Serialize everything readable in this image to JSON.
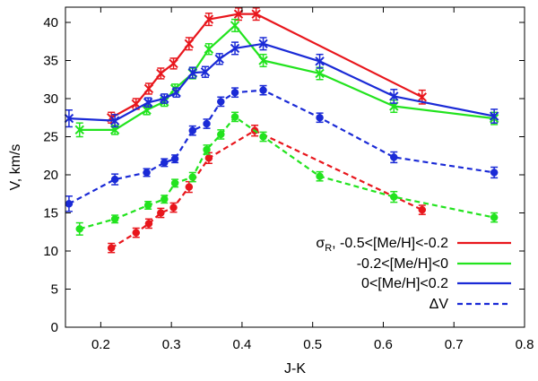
{
  "chart_data": {
    "type": "line",
    "title": "",
    "xlabel": "J-K",
    "ylabel": "V, km/s",
    "xlim": [
      0.15,
      0.8
    ],
    "ylim": [
      0,
      42
    ],
    "xticks": [
      "0.2",
      "0.3",
      "0.4",
      "0.5",
      "0.6",
      "0.7",
      "0.8"
    ],
    "yticks": [
      "0",
      "5",
      "10",
      "15",
      "20",
      "25",
      "30",
      "35",
      "40"
    ],
    "legend_position": "bottom-right",
    "legend": [
      {
        "label": "σ_R, -0.5<[Me/H]<-0.2",
        "prefix": "σ",
        "sub": "R",
        "suffix": ", -0.5<[Me/H]<-0.2",
        "color": "#e8161c",
        "style": "solid"
      },
      {
        "label": "-0.2<[Me/H]<0",
        "color": "#22e31e",
        "style": "solid"
      },
      {
        "label": "0<[Me/H]<0.2",
        "color": "#1a2ad6",
        "style": "solid"
      },
      {
        "label": "ΔV",
        "color": "#1a2ad6",
        "style": "dashed"
      }
    ],
    "series": [
      {
        "name": "σR -0.5<[Me/H]<-0.2",
        "color": "#e8161c",
        "style": "solid",
        "marker": "x",
        "x": [
          0.215,
          0.25,
          0.268,
          0.285,
          0.303,
          0.325,
          0.353,
          0.395,
          0.42,
          0.655
        ],
        "y": [
          27.5,
          29.3,
          31.3,
          33.3,
          34.6,
          37.2,
          40.4,
          41.1,
          41.1,
          30.2
        ],
        "err": [
          0.7,
          0.7,
          0.7,
          0.7,
          0.7,
          0.8,
          0.8,
          0.8,
          0.8,
          0.9
        ]
      },
      {
        "name": "σR -0.2<[Me/H]<0",
        "color": "#22e31e",
        "style": "solid",
        "marker": "x",
        "x": [
          0.17,
          0.22,
          0.265,
          0.29,
          0.305,
          0.33,
          0.353,
          0.39,
          0.43,
          0.51,
          0.615,
          0.757
        ],
        "y": [
          25.9,
          25.9,
          28.5,
          29.6,
          31.3,
          33.3,
          36.5,
          39.6,
          35.0,
          33.3,
          29.0,
          27.4
        ],
        "err": [
          0.9,
          0.6,
          0.6,
          0.6,
          0.6,
          0.7,
          0.7,
          0.8,
          0.8,
          0.8,
          0.8,
          0.8
        ]
      },
      {
        "name": "σR 0<[Me/H]<0.2",
        "color": "#1a2ad6",
        "style": "solid",
        "marker": "x",
        "x": [
          0.155,
          0.22,
          0.267,
          0.29,
          0.307,
          0.33,
          0.348,
          0.368,
          0.39,
          0.43,
          0.51,
          0.615,
          0.757
        ],
        "y": [
          27.4,
          27.1,
          29.5,
          30.0,
          30.8,
          33.4,
          33.5,
          35.2,
          36.6,
          37.2,
          34.9,
          30.3,
          27.7
        ],
        "err": [
          1.1,
          0.8,
          0.6,
          0.6,
          0.6,
          0.7,
          0.7,
          0.7,
          0.8,
          0.8,
          0.9,
          0.9,
          0.9
        ]
      },
      {
        "name": "ΔV -0.5<[Me/H]<-0.2",
        "color": "#e8161c",
        "style": "dashed",
        "marker": "circle",
        "x": [
          0.215,
          0.25,
          0.268,
          0.285,
          0.303,
          0.325,
          0.353,
          0.418,
          0.655
        ],
        "y": [
          10.4,
          12.4,
          13.6,
          15.0,
          15.7,
          18.4,
          22.2,
          25.8,
          15.4
        ],
        "err": [
          0.6,
          0.6,
          0.6,
          0.6,
          0.6,
          0.7,
          0.7,
          0.7,
          0.6
        ]
      },
      {
        "name": "ΔV -0.2<[Me/H]<0",
        "color": "#22e31e",
        "style": "dashed",
        "marker": "circle",
        "x": [
          0.17,
          0.22,
          0.267,
          0.29,
          0.305,
          0.33,
          0.35,
          0.37,
          0.39,
          0.43,
          0.51,
          0.615,
          0.757
        ],
        "y": [
          12.9,
          14.2,
          16.0,
          16.8,
          18.9,
          19.7,
          23.3,
          25.3,
          27.6,
          25.0,
          19.8,
          17.1,
          14.4
        ],
        "err": [
          0.8,
          0.5,
          0.5,
          0.5,
          0.5,
          0.6,
          0.6,
          0.6,
          0.6,
          0.6,
          0.6,
          0.7,
          0.6
        ]
      },
      {
        "name": "ΔV 0<[Me/H]<0.2",
        "color": "#1a2ad6",
        "style": "dashed",
        "marker": "circle",
        "x": [
          0.155,
          0.22,
          0.265,
          0.29,
          0.305,
          0.33,
          0.35,
          0.37,
          0.39,
          0.43,
          0.51,
          0.615,
          0.757
        ],
        "y": [
          16.2,
          19.4,
          20.3,
          21.6,
          22.1,
          25.8,
          26.7,
          29.6,
          30.8,
          31.1,
          27.5,
          22.3,
          20.3
        ],
        "err": [
          1.0,
          0.7,
          0.5,
          0.5,
          0.5,
          0.6,
          0.6,
          0.6,
          0.6,
          0.6,
          0.6,
          0.7,
          0.7
        ]
      }
    ]
  }
}
